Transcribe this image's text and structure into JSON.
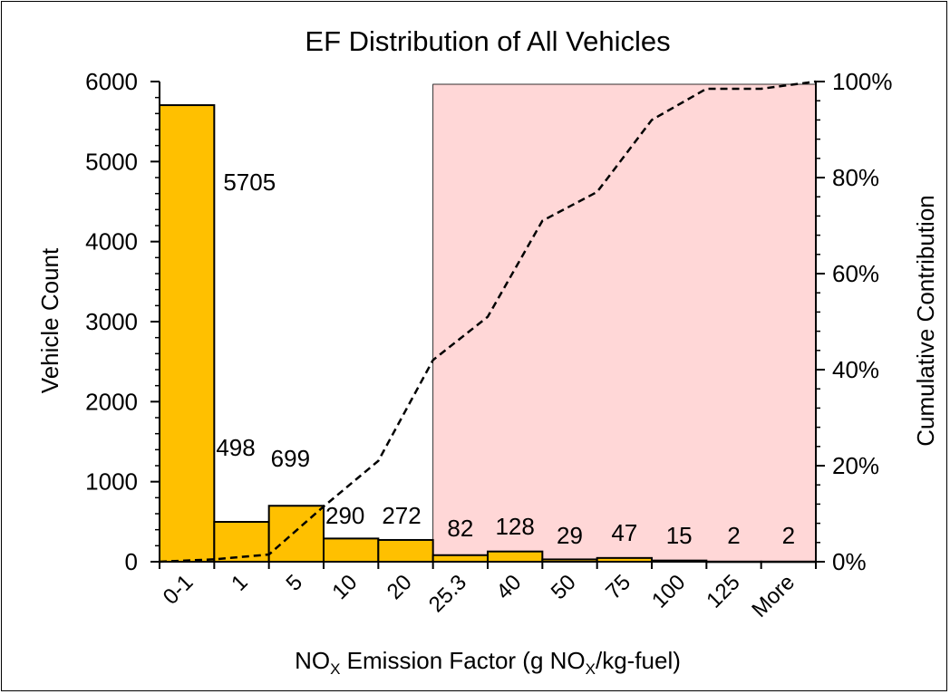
{
  "chart_data": {
    "type": "bar",
    "title": "EF Distribution of All Vehicles",
    "xlabel": {
      "main": "NO",
      "sub": "X",
      "mid": " Emission Factor (g NO",
      "sub2": "X",
      "end": "/kg-fuel)"
    },
    "ylabel": "Vehicle Count",
    "y2label": "Cumulative Contribution",
    "categories": [
      "0-1",
      "1",
      "5",
      "10",
      "20",
      "25.3",
      "40",
      "50",
      "75",
      "100",
      "125",
      "More"
    ],
    "series": [
      {
        "values": [
          5705,
          498,
          699,
          290,
          272,
          82,
          128,
          29,
          47,
          15,
          2,
          2
        ]
      }
    ],
    "data_labels": [
      "5705",
      "498",
      "699",
      "290",
      "272",
      "82",
      "128",
      "29",
      "47",
      "15",
      "2",
      "2"
    ],
    "cumulative_percent": [
      0,
      0.5,
      1.5,
      11.5,
      21,
      42,
      51,
      71,
      77,
      92,
      98.5,
      98.5,
      100
    ],
    "ylim": [
      0,
      6000
    ],
    "y_ticks": [
      0,
      1000,
      2000,
      3000,
      4000,
      5000,
      6000
    ],
    "y2lim": [
      0,
      100
    ],
    "y2_ticks": [
      "0%",
      "20%",
      "40%",
      "60%",
      "80%",
      "100%"
    ],
    "highlight_start_category": "25.3",
    "colors": {
      "bar": "#FFC000",
      "bar_outline": "#000000",
      "highlight": "#FFD7D7",
      "line": "#000000"
    }
  }
}
